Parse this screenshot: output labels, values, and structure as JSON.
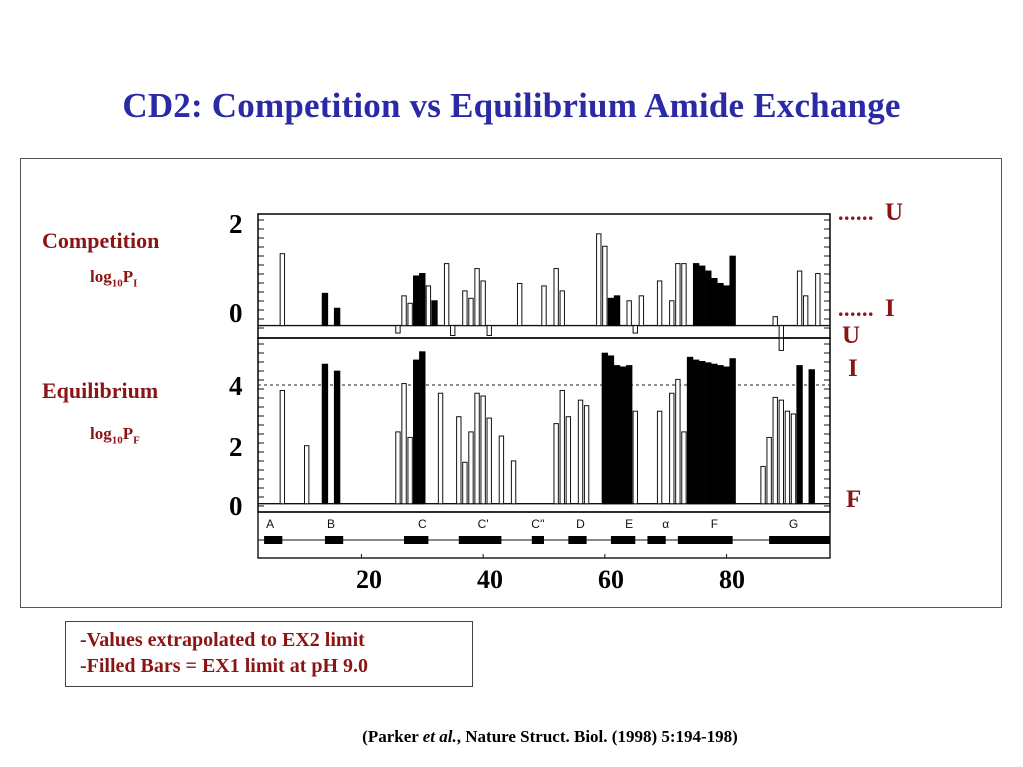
{
  "title": "CD2: Competition vs Equilibrium Amide Exchange",
  "competition": {
    "label": "Competition",
    "unit_base": "log",
    "unit_sub": "10",
    "unit_var": "P",
    "unit_var_sub": "I"
  },
  "equilibrium": {
    "label": "Equilibrium",
    "unit_base": "log",
    "unit_sub": "10",
    "unit_var": "P",
    "unit_var_sub": "F"
  },
  "right_labels": {
    "top_u": "U",
    "top_i": "I",
    "bot_u": "U",
    "bot_i": "I",
    "bot_f": "F",
    "dots": "......"
  },
  "notes": [
    "-Values extrapolated to EX2 limit",
    "-Filled Bars = EX1 limit at pH 9.0"
  ],
  "citation": {
    "open": "(Parker ",
    "italic": "et al.",
    "rest": ", Nature Struct. Biol. (1998) 5:194-198)"
  },
  "chart_data": {
    "type": "bar",
    "x_range": [
      3,
      97
    ],
    "xticks": [
      "20",
      "40",
      "60",
      "80"
    ],
    "strands": [
      "A",
      "B",
      "C",
      "C'",
      "C''",
      "D",
      "E",
      "α",
      "F",
      "G"
    ],
    "panels": [
      {
        "name": "Competition",
        "yticks": [
          "2",
          "0"
        ],
        "ylim": [
          -0.25,
          2.25
        ],
        "dashed_level": null,
        "open": [
          [
            7,
            1.45
          ],
          [
            26,
            -0.15
          ],
          [
            27,
            0.6
          ],
          [
            28,
            0.45
          ],
          [
            30,
            0.9
          ],
          [
            31,
            0.8
          ],
          [
            34,
            1.25
          ],
          [
            35,
            -0.2
          ],
          [
            37,
            0.7
          ],
          [
            38,
            0.55
          ],
          [
            39,
            1.15
          ],
          [
            40,
            0.9
          ],
          [
            41,
            -0.2
          ],
          [
            46,
            0.85
          ],
          [
            50,
            0.8
          ],
          [
            52,
            1.15
          ],
          [
            53,
            0.7
          ],
          [
            59,
            1.85
          ],
          [
            60,
            1.6
          ],
          [
            64,
            0.5
          ],
          [
            65,
            -0.15
          ],
          [
            66,
            0.6
          ],
          [
            69,
            0.9
          ],
          [
            71,
            0.5
          ],
          [
            72,
            1.25
          ],
          [
            73,
            1.25
          ],
          [
            88,
            0.18
          ],
          [
            89,
            -0.5
          ],
          [
            92,
            1.1
          ],
          [
            93,
            0.6
          ],
          [
            95,
            1.05
          ]
        ],
        "filled": [
          [
            14,
            0.65
          ],
          [
            16,
            0.35
          ],
          [
            29,
            1.0
          ],
          [
            30,
            1.05
          ],
          [
            32,
            0.5
          ],
          [
            61,
            0.55
          ],
          [
            62,
            0.6
          ],
          [
            75,
            1.25
          ],
          [
            76,
            1.2
          ],
          [
            77,
            1.1
          ],
          [
            78,
            0.95
          ],
          [
            79,
            0.85
          ],
          [
            80,
            0.8
          ],
          [
            81,
            1.4
          ]
        ]
      },
      {
        "name": "Equilibrium",
        "yticks": [
          "4",
          "2",
          "0"
        ],
        "ylim": [
          -0.3,
          6
        ],
        "dashed_level": 4.3,
        "open": [
          [
            7,
            4.1
          ],
          [
            11,
            2.1
          ],
          [
            26,
            2.6
          ],
          [
            27,
            4.35
          ],
          [
            28,
            2.4
          ],
          [
            29,
            1.5
          ],
          [
            33,
            4.0
          ],
          [
            36,
            3.15
          ],
          [
            37,
            1.5
          ],
          [
            38,
            2.6
          ],
          [
            39,
            4.0
          ],
          [
            40,
            3.9
          ],
          [
            41,
            3.1
          ],
          [
            43,
            2.45
          ],
          [
            45,
            1.55
          ],
          [
            52,
            2.9
          ],
          [
            53,
            4.1
          ],
          [
            54,
            3.15
          ],
          [
            56,
            3.75
          ],
          [
            57,
            3.55
          ],
          [
            60,
            4.85
          ],
          [
            65,
            3.35
          ],
          [
            69,
            3.35
          ],
          [
            71,
            4.0
          ],
          [
            72,
            4.5
          ],
          [
            73,
            2.6
          ],
          [
            86,
            1.35
          ],
          [
            87,
            2.4
          ],
          [
            88,
            3.85
          ],
          [
            89,
            3.75
          ],
          [
            90,
            3.35
          ],
          [
            91,
            3.25
          ]
        ],
        "filled": [
          [
            14,
            5.05
          ],
          [
            16,
            4.8
          ],
          [
            29,
            5.2
          ],
          [
            30,
            5.5
          ],
          [
            60,
            5.45
          ],
          [
            61,
            5.35
          ],
          [
            62,
            5.0
          ],
          [
            63,
            4.95
          ],
          [
            64,
            5.0
          ],
          [
            74,
            5.3
          ],
          [
            75,
            5.2
          ],
          [
            76,
            5.15
          ],
          [
            77,
            5.1
          ],
          [
            78,
            5.05
          ],
          [
            79,
            5.0
          ],
          [
            80,
            4.95
          ],
          [
            81,
            5.25
          ],
          [
            92,
            5.0
          ],
          [
            94,
            4.85
          ]
        ]
      }
    ]
  }
}
